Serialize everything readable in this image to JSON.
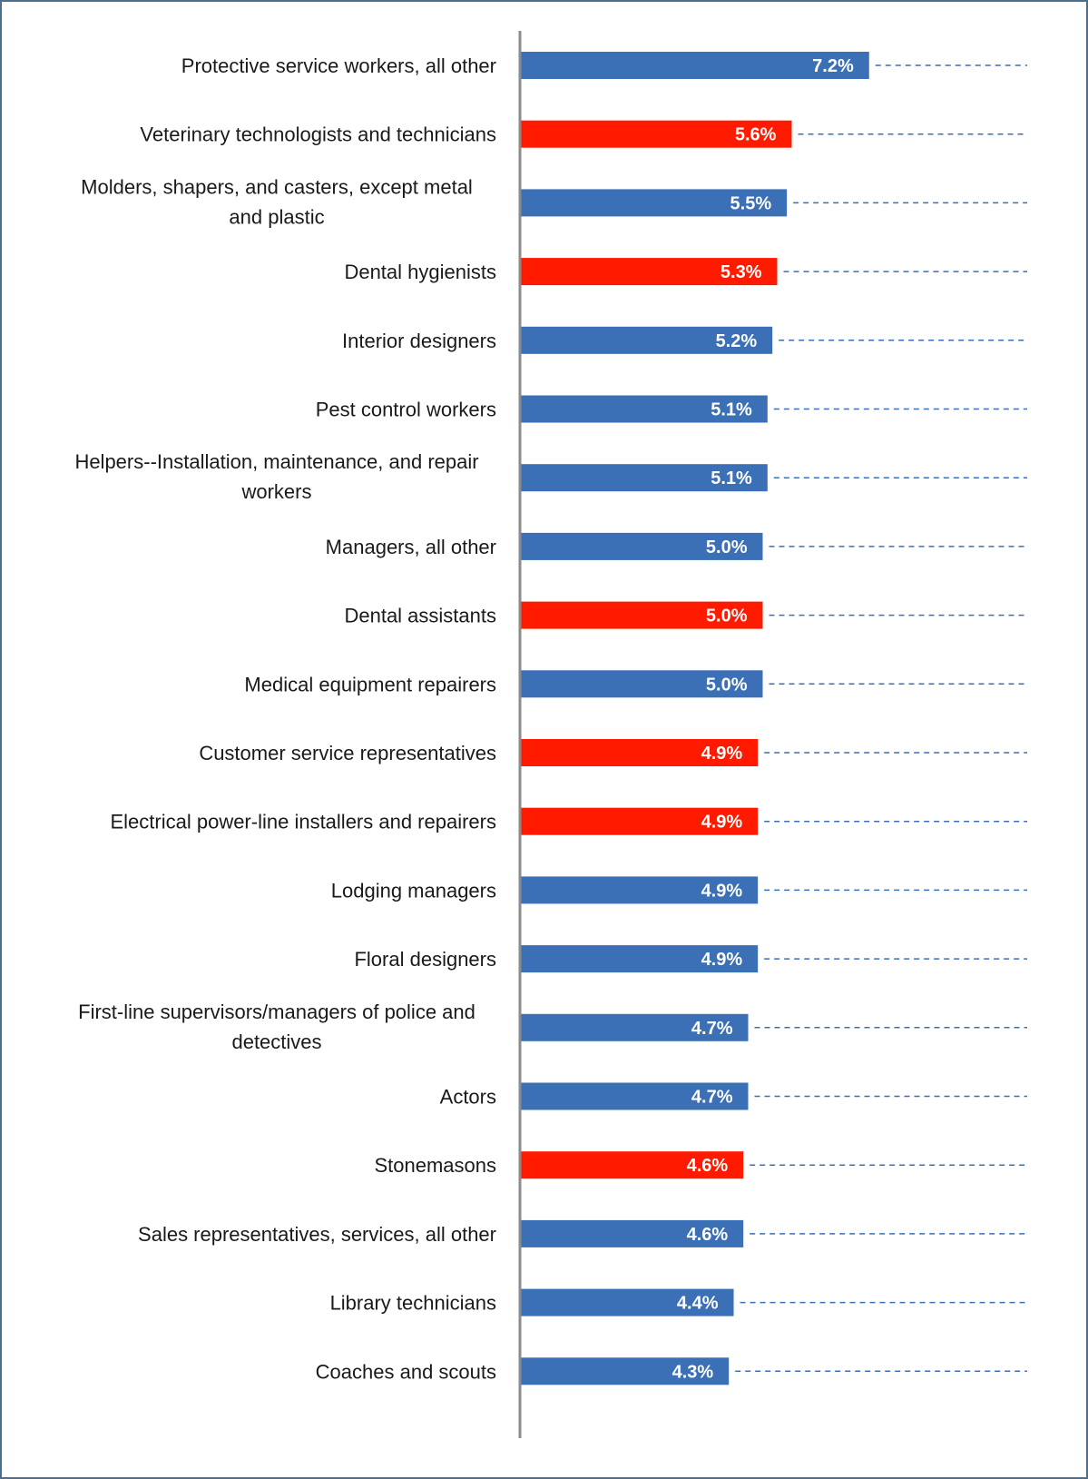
{
  "chart_data": {
    "type": "bar",
    "orientation": "horizontal",
    "title": "",
    "xlabel": "",
    "ylabel": "",
    "xlim": [
      0,
      7.2
    ],
    "grid": false,
    "colors": {
      "default": "#3b6fb6",
      "highlight": "#ff1a00",
      "leader": "#3b6fb6"
    },
    "categories": [
      [
        "Protective service workers, all other"
      ],
      [
        "Veterinary technologists and technicians"
      ],
      [
        "Molders, shapers, and casters, except metal",
        "and plastic"
      ],
      [
        "Dental hygienists"
      ],
      [
        "Interior designers"
      ],
      [
        "Pest control workers"
      ],
      [
        "Helpers--Installation, maintenance, and repair",
        "workers"
      ],
      [
        "Managers, all other"
      ],
      [
        "Dental assistants"
      ],
      [
        "Medical equipment repairers"
      ],
      [
        "Customer service representatives"
      ],
      [
        "Electrical power-line installers and repairers"
      ],
      [
        "Lodging managers"
      ],
      [
        "Floral designers"
      ],
      [
        "First-line supervisors/managers of police and",
        "detectives"
      ],
      [
        "Actors"
      ],
      [
        "Stonemasons"
      ],
      [
        "Sales representatives, services, all other"
      ],
      [
        "Library technicians"
      ],
      [
        "Coaches and scouts"
      ]
    ],
    "values": [
      7.2,
      5.6,
      5.5,
      5.3,
      5.2,
      5.1,
      5.1,
      5.0,
      5.0,
      5.0,
      4.9,
      4.9,
      4.9,
      4.9,
      4.7,
      4.7,
      4.6,
      4.6,
      4.4,
      4.3
    ],
    "value_labels": [
      "7.2%",
      "5.6%",
      "5.5%",
      "5.3%",
      "5.2%",
      "5.1%",
      "5.1%",
      "5.0%",
      "5.0%",
      "5.0%",
      "4.9%",
      "4.9%",
      "4.9%",
      "4.9%",
      "4.7%",
      "4.7%",
      "4.6%",
      "4.6%",
      "4.4%",
      "4.3%"
    ],
    "highlighted": [
      false,
      true,
      false,
      true,
      false,
      false,
      false,
      false,
      true,
      false,
      true,
      true,
      false,
      false,
      false,
      false,
      true,
      false,
      false,
      false
    ]
  }
}
